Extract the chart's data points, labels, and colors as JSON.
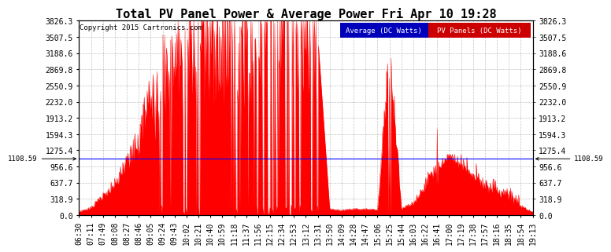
{
  "title": "Total PV Panel Power & Average Power Fri Apr 10 19:28",
  "copyright": "Copyright 2015 Cartronics.com",
  "legend_items": [
    {
      "label": "Average (DC Watts)",
      "color": "#0000cc",
      "text_color": "#ffffff"
    },
    {
      "label": "PV Panels (DC Watts)",
      "color": "#cc0000",
      "text_color": "#ffffff"
    }
  ],
  "yticks": [
    0.0,
    318.9,
    637.7,
    956.6,
    1275.4,
    1594.3,
    1913.2,
    2232.0,
    2550.9,
    2869.8,
    3188.6,
    3507.5,
    3826.3
  ],
  "ymax": 3826.3,
  "ymin": 0.0,
  "average_value": 1108.59,
  "x_labels": [
    "06:30",
    "07:11",
    "07:49",
    "08:08",
    "08:27",
    "08:46",
    "09:05",
    "09:24",
    "09:43",
    "10:02",
    "10:21",
    "10:40",
    "10:59",
    "11:18",
    "11:37",
    "11:56",
    "12:15",
    "12:34",
    "12:53",
    "13:12",
    "13:31",
    "13:50",
    "14:09",
    "14:28",
    "14:47",
    "15:06",
    "15:25",
    "15:44",
    "16:03",
    "16:22",
    "16:41",
    "17:00",
    "17:19",
    "17:38",
    "17:57",
    "18:16",
    "18:35",
    "18:54",
    "19:13"
  ],
  "background_color": "#ffffff",
  "plot_bg_color": "#ffffff",
  "grid_color": "#aaaaaa",
  "fill_color": "#ff0000",
  "avg_line_color": "#0000ff",
  "title_fontsize": 11,
  "copyright_fontsize": 6.5,
  "tick_fontsize": 7
}
